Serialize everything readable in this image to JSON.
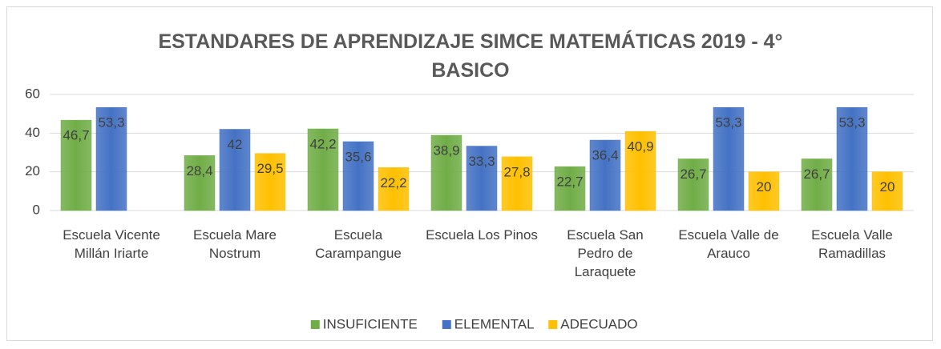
{
  "chart_data": {
    "type": "bar",
    "title": "ESTANDARES DE APRENDIZAJE SIMCE  MATEMÁTICAS 2019 - 4° BASICO",
    "categories": [
      "Escuela Vicente Millán Iriarte",
      "Escuela Mare Nostrum",
      "Escuela Carampangue",
      "Escuela  Los Pinos",
      "Escuela  San Pedro de Laraquete",
      "Escuela Valle de Arauco",
      "Escuela  Valle Ramadillas"
    ],
    "series": [
      {
        "name": "INSUFICIENTE",
        "color": "#70ad47",
        "values": [
          46.7,
          28.4,
          42.2,
          38.9,
          22.7,
          26.7,
          26.7
        ],
        "value_labels": [
          "46,7",
          "28,4",
          "42,2",
          "38,9",
          "22,7",
          "26,7",
          "26,7"
        ]
      },
      {
        "name": "ELEMENTAL",
        "color": "#4472c4",
        "values": [
          53.3,
          42,
          35.6,
          33.3,
          36.4,
          53.3,
          53.3
        ],
        "value_labels": [
          "53,3",
          "42",
          "35,6",
          "33,3",
          "36,4",
          "53,3",
          "53,3"
        ]
      },
      {
        "name": "ADECUADO",
        "color": "#ffc000",
        "values": [
          null,
          29.5,
          22.2,
          27.8,
          40.9,
          20,
          20
        ],
        "value_labels": [
          null,
          "29,5",
          "22,2",
          "27,8",
          "40,9",
          "20",
          "20"
        ]
      }
    ],
    "ylim": [
      0,
      60
    ],
    "yticks": [
      0,
      20,
      40,
      60
    ],
    "grid": true,
    "legend": "bottom"
  }
}
